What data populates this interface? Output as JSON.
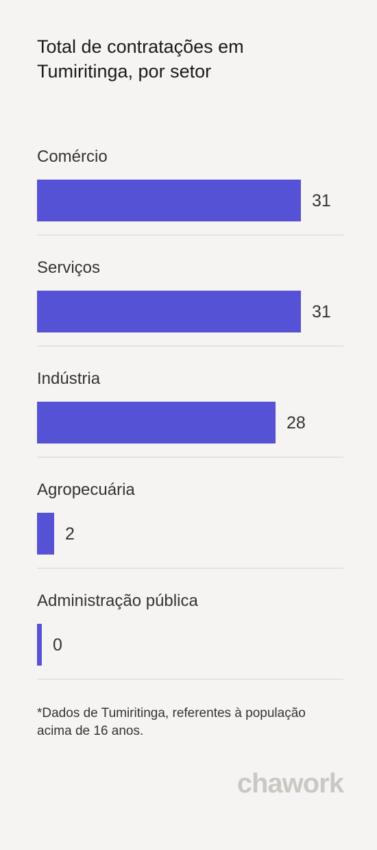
{
  "chart_data": {
    "type": "bar",
    "orientation": "horizontal",
    "title": "Total de contratações em Tumiritinga, por setor",
    "categories": [
      "Comércio",
      "Serviços",
      "Indústria",
      "Agropecuária",
      "Administração pública"
    ],
    "values": [
      31,
      31,
      28,
      2,
      0
    ],
    "value_labels": [
      "31",
      "31",
      "28",
      "2",
      "0"
    ],
    "xlim": [
      0,
      31
    ],
    "grid": false,
    "bar_color": "#5652d6"
  },
  "footnote": "*Dados de Tumiritinga, referentes à população acima de 16 anos.",
  "brand": {
    "logo_text": "chawork",
    "logo_color": "#c9c8c2"
  },
  "colors": {
    "background": "#f5f4f2",
    "bar": "#5652d6",
    "divider": "#e4e3e1"
  }
}
